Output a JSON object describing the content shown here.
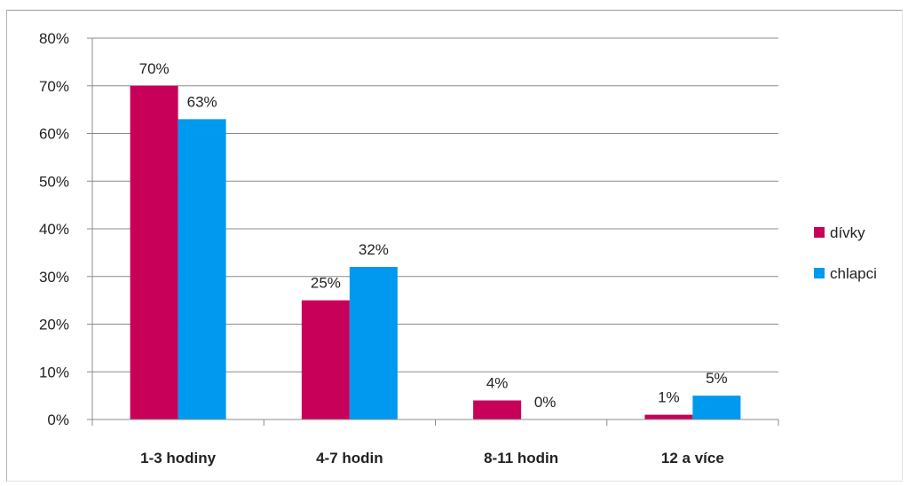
{
  "chart_data": {
    "type": "bar",
    "categories": [
      "1-3 hodiny",
      "4-7 hodin",
      "8-11 hodin",
      "12 a více"
    ],
    "series": [
      {
        "name": "dívky",
        "color": "#c8005a",
        "values": [
          70,
          25,
          4,
          1
        ],
        "labels": [
          "70%",
          "25%",
          "4%",
          "1%"
        ]
      },
      {
        "name": "chlapci",
        "color": "#0099f0",
        "values": [
          63,
          32,
          0,
          5
        ],
        "labels": [
          "63%",
          "32%",
          "0%",
          "5%"
        ]
      }
    ],
    "yticks": [
      "0%",
      "10%",
      "20%",
      "30%",
      "40%",
      "50%",
      "60%",
      "70%",
      "80%"
    ],
    "ylim": [
      0,
      80
    ],
    "grid": true,
    "legend": "right"
  }
}
